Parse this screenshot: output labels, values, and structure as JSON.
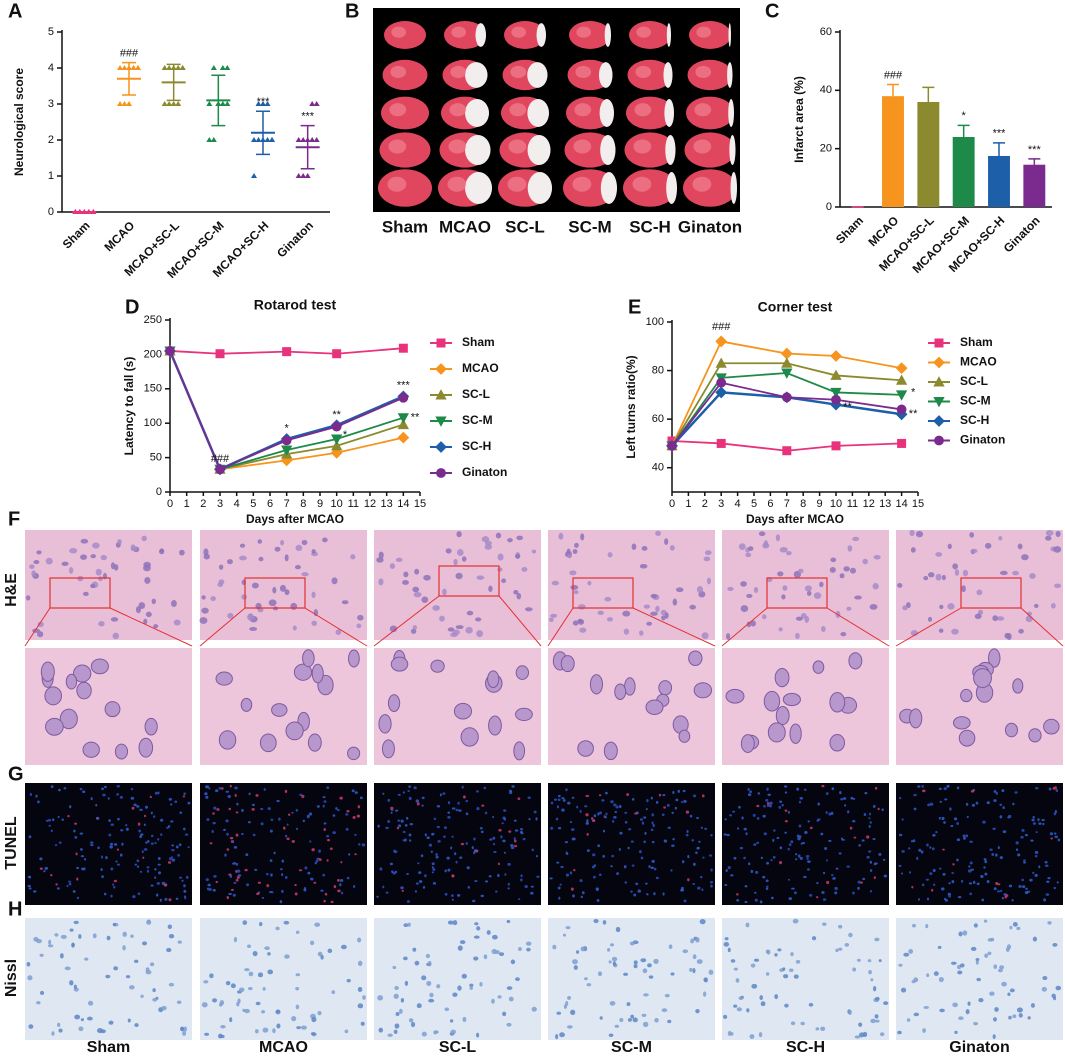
{
  "chart_data": [
    {
      "type": "dot",
      "letter": "A",
      "ylabel": "Neurological score",
      "categories": [
        "Sham",
        "MCAO",
        "MCAO+SC-L",
        "MCAO+SC-M",
        "MCAO+SC-H",
        "Ginaton"
      ],
      "colors": [
        "#e8327c",
        "#f7941d",
        "#8b8a2e",
        "#1e8a4a",
        "#1d5fa8",
        "#7b2a8e"
      ],
      "points": [
        [
          0,
          0,
          0,
          0,
          0,
          0,
          0,
          0,
          0,
          0
        ],
        [
          3,
          3,
          3,
          4,
          4,
          4,
          4,
          4,
          4,
          4
        ],
        [
          3,
          3,
          3,
          4,
          4,
          4,
          4,
          4,
          3,
          4
        ],
        [
          2,
          2,
          3,
          3,
          3,
          3,
          4,
          3,
          4,
          4
        ],
        [
          1,
          2,
          2,
          2,
          2,
          2,
          3,
          3,
          3,
          2
        ],
        [
          1,
          1,
          1,
          2,
          2,
          2,
          2,
          2,
          3,
          3
        ]
      ],
      "mean": [
        0,
        3.7,
        3.6,
        3.1,
        2.2,
        1.8
      ],
      "sd": [
        0,
        0.45,
        0.5,
        0.7,
        0.6,
        0.6
      ],
      "annotations": [
        null,
        "###",
        null,
        null,
        "***",
        "***"
      ],
      "ylim": [
        0,
        5
      ],
      "yticks": [
        0,
        1,
        2,
        3,
        4,
        5
      ]
    },
    {
      "type": "bar",
      "letter": "C",
      "ylabel": "Infarct area (%)",
      "categories": [
        "Sham",
        "MCAO",
        "MCAO+SC-L",
        "MCAO+SC-M",
        "MCAO+SC-H",
        "Ginaton"
      ],
      "colors": [
        "#e8327c",
        "#f7941d",
        "#8b8a2e",
        "#1e8a4a",
        "#1d5fa8",
        "#7b2a8e"
      ],
      "values": [
        0,
        38,
        36,
        24,
        17.5,
        14.5
      ],
      "errors": [
        0,
        4,
        5,
        4,
        4.5,
        2
      ],
      "annotations": [
        null,
        "###",
        null,
        "*",
        "***",
        "***"
      ],
      "ylim": [
        0,
        60
      ],
      "yticks": [
        0,
        20,
        40,
        60
      ]
    },
    {
      "type": "line",
      "letter": "D",
      "title": "Rotarod test",
      "xlabel": "Days after MCAO",
      "ylabel": "Latency to fall (s)",
      "x": [
        0,
        3,
        7,
        10,
        14
      ],
      "series": [
        {
          "name": "Sham",
          "color": "#e8327c",
          "marker": "square",
          "values": [
            205,
            201,
            204,
            201,
            209
          ]
        },
        {
          "name": "MCAO",
          "color": "#f7941d",
          "marker": "diamond",
          "values": [
            205,
            33,
            46,
            57,
            79
          ]
        },
        {
          "name": "SC-L",
          "color": "#8b8a2e",
          "marker": "triangle",
          "values": [
            205,
            33,
            55,
            67,
            98
          ]
        },
        {
          "name": "SC-M",
          "color": "#1e8a4a",
          "marker": "triangle-down",
          "values": [
            205,
            33,
            61,
            77,
            108
          ]
        },
        {
          "name": "SC-H",
          "color": "#1d5fa8",
          "marker": "diamond",
          "values": [
            205,
            33,
            77,
            97,
            139
          ]
        },
        {
          "name": "Ginaton",
          "color": "#7b2a8e",
          "marker": "circle",
          "values": [
            205,
            33,
            75,
            95,
            137
          ]
        }
      ],
      "annotations": [
        {
          "text": "###",
          "x": 3,
          "y": 48
        },
        {
          "text": "*",
          "x": 7,
          "y": 92
        },
        {
          "text": "**",
          "x": 10,
          "y": 112
        },
        {
          "text": "*",
          "x": 10.5,
          "y": 83
        },
        {
          "text": "***",
          "x": 14,
          "y": 155
        },
        {
          "text": "**",
          "x": 14.7,
          "y": 108
        }
      ],
      "xlim": [
        0,
        15
      ],
      "xticks": [
        0,
        1,
        2,
        3,
        4,
        5,
        6,
        7,
        8,
        9,
        10,
        11,
        12,
        13,
        14,
        15
      ],
      "ylim": [
        0,
        250
      ],
      "yticks": [
        0,
        50,
        100,
        150,
        200,
        250
      ]
    },
    {
      "type": "line",
      "letter": "E",
      "title": "Corner test",
      "xlabel": "Days after MCAO",
      "ylabel": "Left turns ratio(%)",
      "x": [
        0,
        3,
        7,
        10,
        14
      ],
      "series": [
        {
          "name": "Sham",
          "color": "#e8327c",
          "marker": "square",
          "values": [
            51,
            50,
            47,
            49,
            50
          ]
        },
        {
          "name": "MCAO",
          "color": "#f7941d",
          "marker": "diamond",
          "values": [
            49,
            92,
            87,
            86,
            81
          ]
        },
        {
          "name": "SC-L",
          "color": "#8b8a2e",
          "marker": "triangle",
          "values": [
            49,
            83,
            83,
            78,
            76
          ]
        },
        {
          "name": "SC-M",
          "color": "#1e8a4a",
          "marker": "triangle-down",
          "values": [
            49,
            77,
            79,
            71,
            70
          ]
        },
        {
          "name": "SC-H",
          "color": "#1d5fa8",
          "marker": "diamond",
          "values": [
            49,
            71,
            69,
            66,
            62
          ]
        },
        {
          "name": "Ginaton",
          "color": "#7b2a8e",
          "marker": "circle",
          "values": [
            49,
            75,
            69,
            68,
            64
          ]
        }
      ],
      "annotations": [
        {
          "text": "###",
          "x": 3,
          "y": 98
        },
        {
          "text": "*",
          "x": 14.7,
          "y": 71
        },
        {
          "text": "**",
          "x": 10.7,
          "y": 65
        },
        {
          "text": "**",
          "x": 14.7,
          "y": 62
        }
      ],
      "xlim": [
        0,
        15
      ],
      "xticks": [
        0,
        1,
        2,
        3,
        4,
        5,
        6,
        7,
        8,
        9,
        10,
        11,
        12,
        13,
        14,
        15
      ],
      "ylim": [
        30,
        100
      ],
      "yticks": [
        40,
        60,
        80,
        100
      ]
    }
  ],
  "brain_panel": {
    "letter": "B",
    "columns": [
      "Sham",
      "MCAO",
      "SC-L",
      "SC-M",
      "SC-H",
      "Ginaton"
    ]
  },
  "micrographs": {
    "letters": [
      "F",
      "G",
      "H"
    ],
    "rows": [
      "H&E",
      "TUNEL",
      "Nissl"
    ],
    "columns": [
      "Sham",
      "MCAO",
      "SC-L",
      "SC-M",
      "SC-H",
      "Ginaton"
    ]
  }
}
